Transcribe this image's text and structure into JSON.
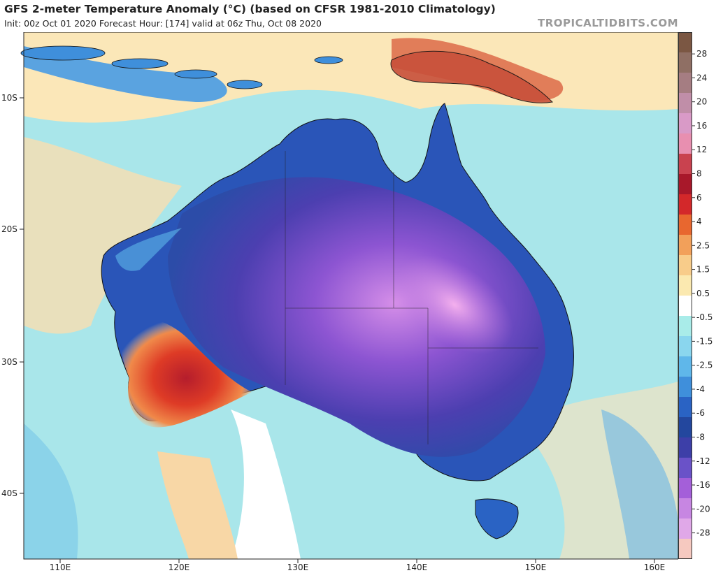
{
  "header": {
    "title": "GFS 2-meter Temperature Anomaly (°C) (based on CFSR 1981-2010 Climatology)",
    "subtitle": "Init: 00z Oct 01 2020   Forecast Hour: [174]   valid at 06z Thu, Oct 08 2020",
    "site": "TROPICALTIDBITS.COM"
  },
  "map": {
    "lat_labels": [
      "10S",
      "20S",
      "30S",
      "40S"
    ],
    "lon_labels": [
      "110E",
      "120E",
      "130E",
      "140E",
      "150E",
      "160E"
    ]
  },
  "colorbar": {
    "labels": [
      "28",
      "24",
      "20",
      "16",
      "12",
      "8",
      "6",
      "4",
      "2.5",
      "1.5",
      "0.5",
      "-0.5",
      "-1.5",
      "-2.5",
      "-4",
      "-6",
      "-8",
      "-12",
      "-16",
      "-20",
      "-28"
    ],
    "colors": [
      "#7b5743",
      "#8f6f64",
      "#a57d82",
      "#c08ea8",
      "#d99ac7",
      "#e88fb0",
      "#c9424f",
      "#a8182a",
      "#d3282a",
      "#e8672f",
      "#f2a05a",
      "#f8cc8a",
      "#fbe9b0",
      "#ffffff",
      "#a9ece9",
      "#8ad6ee",
      "#5fb7ea",
      "#3f8fdb",
      "#2a63c4",
      "#23479e",
      "#3d3fa8",
      "#6a52c8",
      "#a45fd9",
      "#c786e2",
      "#e0a8e8",
      "#f6c9c0"
    ]
  }
}
